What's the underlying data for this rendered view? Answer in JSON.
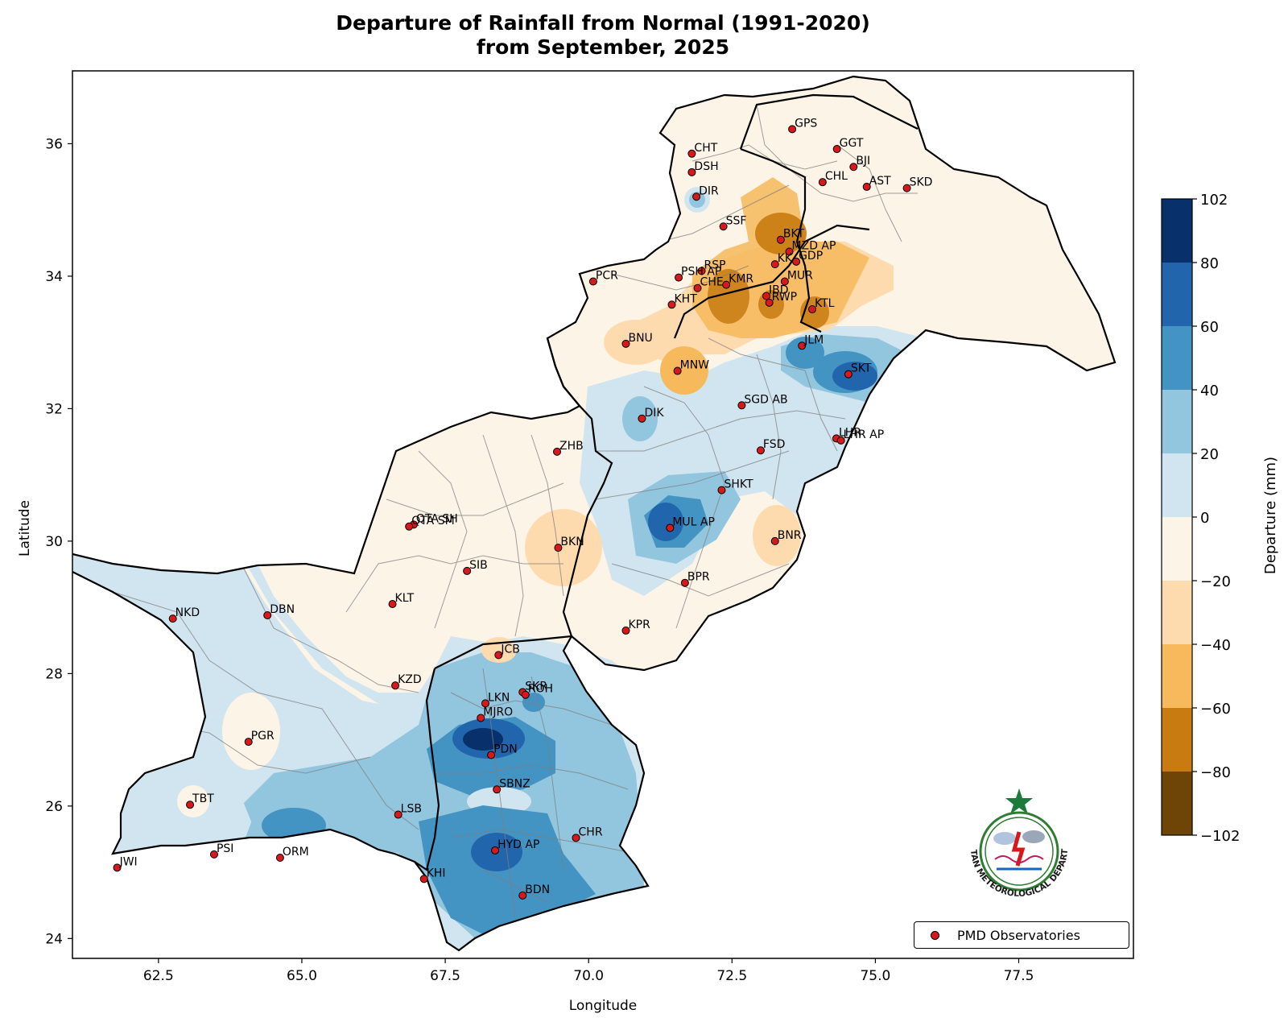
{
  "title_line1": "Departure of Rainfall from Normal (1991-2020)",
  "title_line2": "from September, 2025",
  "axes": {
    "xlabel": "Longitude",
    "ylabel": "Latitude",
    "xlim": [
      61.0,
      79.5
    ],
    "ylim": [
      23.7,
      37.1
    ],
    "xticks": [
      "62.5",
      "65.0",
      "67.5",
      "70.0",
      "72.5",
      "75.0",
      "77.5"
    ],
    "xtick_values": [
      62.5,
      65.0,
      67.5,
      70.0,
      72.5,
      75.0,
      77.5
    ],
    "yticks": [
      "24",
      "26",
      "28",
      "30",
      "32",
      "34",
      "36"
    ],
    "ytick_values": [
      24,
      26,
      28,
      30,
      32,
      34,
      36
    ]
  },
  "colorbar": {
    "label": "Departure (mm)",
    "ticks": [
      "102",
      "80",
      "60",
      "40",
      "20",
      "0",
      "−20",
      "−40",
      "−60",
      "−80",
      "−102"
    ],
    "colors": [
      "#08306b",
      "#2166ac",
      "#4393c3",
      "#92c5de",
      "#d1e5f0",
      "#fdf4e8",
      "#fddbae",
      "#f6b95b",
      "#c87b10",
      "#6f4507"
    ]
  },
  "legend": {
    "label": "PMD Observatories",
    "marker_color": "#d7191c"
  },
  "logo": {
    "text": "PAKISTAN METEOROLOGICAL DEPARTMENT",
    "icon": "pmd-logo-icon"
  },
  "stations": [
    {
      "name": "GPS",
      "lon": 73.55,
      "lat": 36.22
    },
    {
      "name": "CHT",
      "lon": 71.8,
      "lat": 35.85
    },
    {
      "name": "GGT",
      "lon": 74.33,
      "lat": 35.92
    },
    {
      "name": "DSH",
      "lon": 71.8,
      "lat": 35.57
    },
    {
      "name": "BJI",
      "lon": 74.62,
      "lat": 35.65
    },
    {
      "name": "CHL",
      "lon": 74.08,
      "lat": 35.42
    },
    {
      "name": "AST",
      "lon": 74.85,
      "lat": 35.35
    },
    {
      "name": "SKD",
      "lon": 75.55,
      "lat": 35.33
    },
    {
      "name": "DIR",
      "lon": 71.88,
      "lat": 35.2
    },
    {
      "name": "SSF",
      "lon": 72.35,
      "lat": 34.75
    },
    {
      "name": "BKT",
      "lon": 73.35,
      "lat": 34.55
    },
    {
      "name": "MZD AP",
      "lon": 73.5,
      "lat": 34.37
    },
    {
      "name": "KK",
      "lon": 73.25,
      "lat": 34.18
    },
    {
      "name": "GDP",
      "lon": 73.62,
      "lat": 34.22
    },
    {
      "name": "PCR",
      "lon": 70.08,
      "lat": 33.92
    },
    {
      "name": "RSP",
      "lon": 71.97,
      "lat": 34.08
    },
    {
      "name": "PSH AP",
      "lon": 71.57,
      "lat": 33.98
    },
    {
      "name": "KMR",
      "lon": 72.4,
      "lat": 33.87
    },
    {
      "name": "MUR",
      "lon": 73.42,
      "lat": 33.92
    },
    {
      "name": "CHE",
      "lon": 71.9,
      "lat": 33.82
    },
    {
      "name": "IBD",
      "lon": 73.1,
      "lat": 33.7
    },
    {
      "name": "RWP",
      "lon": 73.15,
      "lat": 33.6
    },
    {
      "name": "KTL",
      "lon": 73.9,
      "lat": 33.5
    },
    {
      "name": "KHT",
      "lon": 71.45,
      "lat": 33.57
    },
    {
      "name": "BNU",
      "lon": 70.65,
      "lat": 32.98
    },
    {
      "name": "JLM",
      "lon": 73.72,
      "lat": 32.95
    },
    {
      "name": "MNW",
      "lon": 71.55,
      "lat": 32.57
    },
    {
      "name": "SKT",
      "lon": 74.53,
      "lat": 32.52
    },
    {
      "name": "SGD AB",
      "lon": 72.67,
      "lat": 32.05
    },
    {
      "name": "DIK",
      "lon": 70.93,
      "lat": 31.85
    },
    {
      "name": "LHR",
      "lon": 74.32,
      "lat": 31.55
    },
    {
      "name": "LHR AP",
      "lon": 74.4,
      "lat": 31.52
    },
    {
      "name": "ZHB",
      "lon": 69.45,
      "lat": 31.35
    },
    {
      "name": "FSD",
      "lon": 73.0,
      "lat": 31.37
    },
    {
      "name": "SHKT",
      "lon": 72.32,
      "lat": 30.77
    },
    {
      "name": "QTA SH",
      "lon": 66.95,
      "lat": 30.25
    },
    {
      "name": "QTA SM",
      "lon": 66.87,
      "lat": 30.22
    },
    {
      "name": "MUL AP",
      "lon": 71.42,
      "lat": 30.2
    },
    {
      "name": "BNR",
      "lon": 73.25,
      "lat": 30.0
    },
    {
      "name": "BKN",
      "lon": 69.47,
      "lat": 29.9
    },
    {
      "name": "SIB",
      "lon": 67.88,
      "lat": 29.55
    },
    {
      "name": "BPR",
      "lon": 71.68,
      "lat": 29.37
    },
    {
      "name": "NKD",
      "lon": 62.75,
      "lat": 28.83
    },
    {
      "name": "DBN",
      "lon": 64.4,
      "lat": 28.88
    },
    {
      "name": "KLT",
      "lon": 66.58,
      "lat": 29.05
    },
    {
      "name": "KPR",
      "lon": 70.65,
      "lat": 28.65
    },
    {
      "name": "JCB",
      "lon": 68.43,
      "lat": 28.28
    },
    {
      "name": "KZD",
      "lon": 66.63,
      "lat": 27.82
    },
    {
      "name": "SKR",
      "lon": 68.85,
      "lat": 27.72
    },
    {
      "name": "LKN",
      "lon": 68.2,
      "lat": 27.55
    },
    {
      "name": "ROH",
      "lon": 68.9,
      "lat": 27.68
    },
    {
      "name": "MJRO",
      "lon": 68.12,
      "lat": 27.33
    },
    {
      "name": "PGR",
      "lon": 64.07,
      "lat": 26.97
    },
    {
      "name": "PDN",
      "lon": 68.3,
      "lat": 26.77
    },
    {
      "name": "SBNZ",
      "lon": 68.4,
      "lat": 26.25
    },
    {
      "name": "TBT",
      "lon": 63.05,
      "lat": 26.02
    },
    {
      "name": "LSB",
      "lon": 66.68,
      "lat": 25.87
    },
    {
      "name": "CHR",
      "lon": 69.78,
      "lat": 25.52
    },
    {
      "name": "HYD AP",
      "lon": 68.37,
      "lat": 25.33
    },
    {
      "name": "PSI",
      "lon": 63.47,
      "lat": 25.27
    },
    {
      "name": "ORM",
      "lon": 64.62,
      "lat": 25.22
    },
    {
      "name": "JWI",
      "lon": 61.78,
      "lat": 25.07
    },
    {
      "name": "KHI",
      "lon": 67.13,
      "lat": 24.9
    },
    {
      "name": "BDN",
      "lon": 68.85,
      "lat": 24.65
    }
  ]
}
